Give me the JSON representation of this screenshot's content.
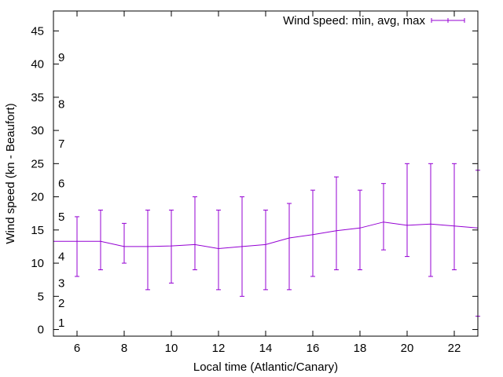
{
  "chart_data": {
    "type": "line",
    "title": "",
    "xlabel": "Local time (Atlantic/Canary)",
    "ylabel": "Wind speed (kn - Beaufort)",
    "xlim": [
      5,
      23
    ],
    "ylim": [
      -1,
      48
    ],
    "x_ticks": [
      6,
      8,
      10,
      12,
      14,
      16,
      18,
      20,
      22
    ],
    "y_ticks": [
      0,
      5,
      10,
      15,
      20,
      25,
      30,
      35,
      40,
      45
    ],
    "beaufort_labels": [
      {
        "label": "1",
        "value": 1
      },
      {
        "label": "2",
        "value": 4
      },
      {
        "label": "3",
        "value": 7
      },
      {
        "label": "4",
        "value": 11
      },
      {
        "label": "5",
        "value": 17
      },
      {
        "label": "6",
        "value": 22
      },
      {
        "label": "7",
        "value": 28
      },
      {
        "label": "8",
        "value": 34
      },
      {
        "label": "9",
        "value": 41
      }
    ],
    "grid": false,
    "legend": {
      "position": "top-right",
      "entries": [
        "Wind speed: min, avg, max"
      ]
    },
    "series": [
      {
        "name": "Wind speed: min, avg, max",
        "color": "#9400d3",
        "x": [
          5,
          6,
          7,
          8,
          9,
          10,
          11,
          12,
          13,
          14,
          15,
          16,
          17,
          18,
          19,
          20,
          21,
          22,
          23
        ],
        "avg": [
          13.3,
          13.3,
          13.3,
          12.5,
          12.5,
          12.6,
          12.8,
          12.2,
          12.5,
          12.8,
          13.8,
          14.3,
          14.9,
          15.3,
          16.2,
          15.7,
          15.9,
          15.6,
          15.3
        ],
        "min": [
          null,
          8,
          9,
          10,
          6,
          7,
          9,
          6,
          5,
          6,
          6,
          8,
          9,
          9,
          12,
          11,
          8,
          9,
          2
        ],
        "max": [
          null,
          17,
          18,
          16,
          18,
          18,
          20,
          18,
          20,
          18,
          19,
          21,
          23,
          21,
          22,
          25,
          25,
          25,
          24
        ]
      }
    ]
  }
}
